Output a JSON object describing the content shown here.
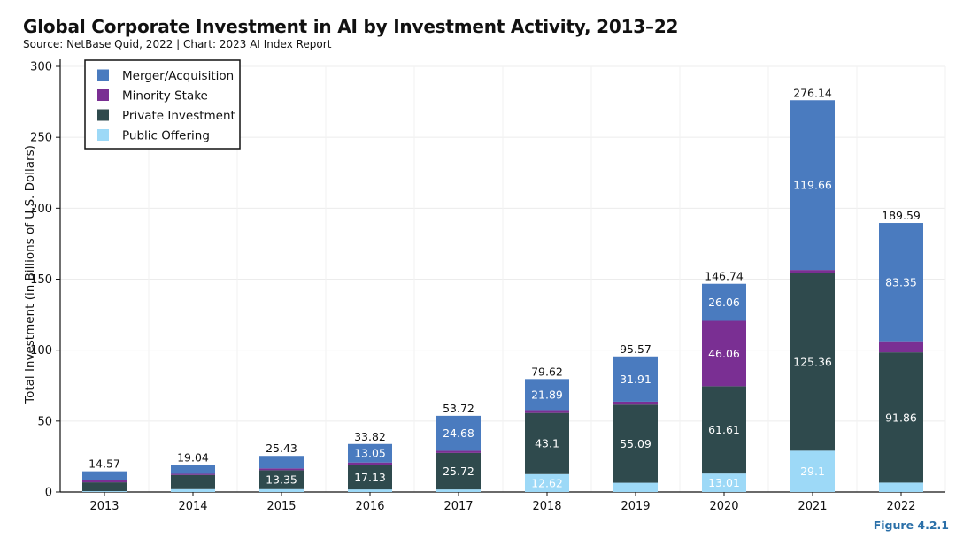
{
  "header": {
    "title": "Global Corporate Investment in AI by Investment Activity, 2013–22",
    "source": "Source: NetBase Quid, 2022 | Chart: 2023 AI Index Report"
  },
  "footer": {
    "figure": "Figure 4.2.1"
  },
  "chart_data": {
    "type": "bar",
    "stacked": true,
    "title": "Global Corporate Investment in AI by Investment Activity, 2013–22",
    "ylabel": "Total Investment (in Billions of U.S. Dollars)",
    "xlabel": "",
    "ylim": [
      0,
      300
    ],
    "yticks": [
      0,
      50,
      100,
      150,
      200,
      250,
      300
    ],
    "grid": true,
    "legend_position": "top-left",
    "categories": [
      "2013",
      "2014",
      "2015",
      "2016",
      "2017",
      "2018",
      "2019",
      "2020",
      "2021",
      "2022"
    ],
    "totals": [
      "14.57",
      "19.04",
      "25.43",
      "33.82",
      "53.72",
      "79.62",
      "95.57",
      "146.74",
      "276.14",
      "189.59"
    ],
    "series": [
      {
        "name": "Public Offering",
        "color": "#9dd9f7",
        "values": [
          0.6,
          2.0,
          2.0,
          1.8,
          1.8,
          12.62,
          6.5,
          13.01,
          29.1,
          6.6
        ],
        "labels": [
          "",
          "",
          "",
          "",
          "",
          "12.62",
          "",
          "13.01",
          "29.1",
          ""
        ]
      },
      {
        "name": "Private Investment",
        "color": "#2f4a4d",
        "values": [
          6.2,
          10.0,
          13.35,
          17.13,
          25.72,
          43.1,
          55.09,
          61.61,
          125.36,
          91.86
        ],
        "labels": [
          "",
          "",
          "13.35",
          "17.13",
          "25.72",
          "43.1",
          "55.09",
          "61.61",
          "125.36",
          "91.86"
        ]
      },
      {
        "name": "Minority Stake",
        "color": "#7a2f93",
        "values": [
          1.8,
          0.8,
          1.3,
          1.84,
          1.52,
          2.01,
          2.07,
          46.06,
          2.02,
          7.78
        ],
        "labels": [
          "",
          "",
          "",
          "",
          "",
          "",
          "",
          "46.06",
          "",
          ""
        ]
      },
      {
        "name": "Merger/Acquisition",
        "color": "#4a7bbf",
        "values": [
          5.97,
          6.24,
          8.78,
          13.05,
          24.68,
          21.89,
          31.91,
          26.06,
          119.66,
          83.35
        ],
        "labels": [
          "",
          "",
          "",
          "13.05",
          "24.68",
          "21.89",
          "31.91",
          "26.06",
          "119.66",
          "83.35"
        ]
      }
    ],
    "legend_order": [
      "Merger/Acquisition",
      "Minority Stake",
      "Private Investment",
      "Public Offering"
    ]
  }
}
